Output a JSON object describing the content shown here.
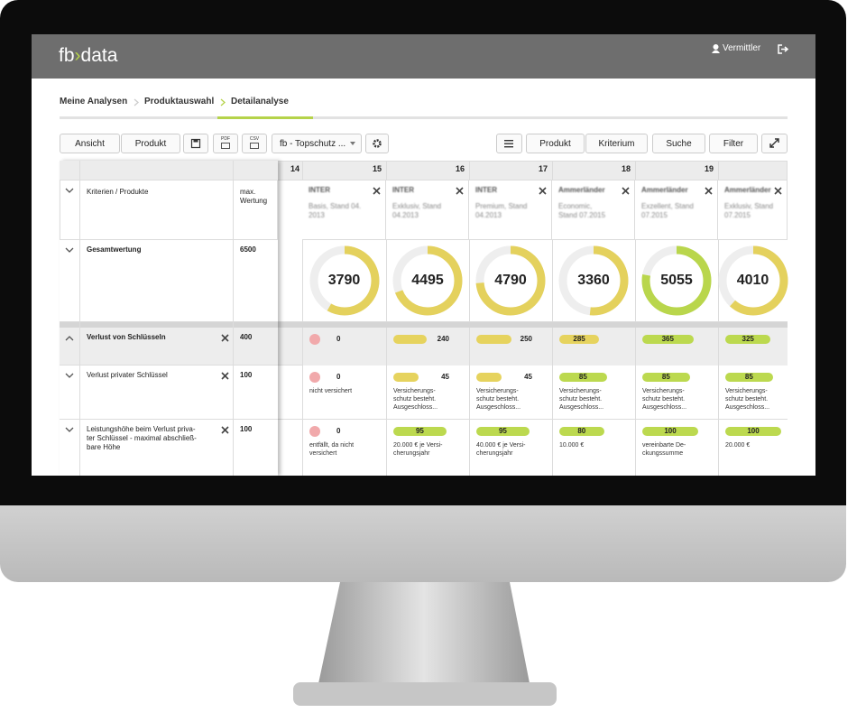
{
  "header": {
    "logo": {
      "left": "fb",
      "mark": "›",
      "right": "data"
    },
    "user": "Vermittler"
  },
  "breadcrumbs": [
    "Meine Analysen",
    "Produktauswahl",
    "Detailanalyse"
  ],
  "toolbar": {
    "left": [
      "Ansicht",
      "Produkt"
    ],
    "export": [
      "PDF",
      "CSV"
    ],
    "dropdown": "fb - Topschutz ...",
    "right": [
      "Produkt",
      "Kriterium",
      "Suche",
      "Filter"
    ]
  },
  "table": {
    "header_label": "Kriterien / Produkte",
    "max_label": "max. Wertung",
    "first_column": 14,
    "products": [
      {
        "column": 15,
        "name": "INTER",
        "tariff": "Basis, Stand 04.\n2013"
      },
      {
        "column": 16,
        "name": "INTER",
        "tariff": "Exklusiv, Stand\n04.2013"
      },
      {
        "column": 17,
        "name": "INTER",
        "tariff": "Premium, Stand\n04.2013"
      },
      {
        "column": 18,
        "name": "Ammerländer",
        "tariff": "Economic,\nStand 07.2015"
      },
      {
        "column": 19,
        "name": "Ammerländer",
        "tariff": "Exzellent, Stand\n07.2015"
      },
      {
        "column": null,
        "name": "Ammerländer",
        "tariff": "Exklusiv, Stand\n07.2015"
      }
    ],
    "rows": [
      {
        "label": "Gesamtwertung",
        "max": 6500,
        "type": "donut",
        "values": [
          3790,
          4495,
          4790,
          3360,
          5055,
          4010
        ]
      },
      {
        "label": "Verlust von Schlüsseln",
        "max": 400,
        "type": "bar",
        "group": true,
        "values": [
          0,
          240,
          250,
          285,
          365,
          325
        ]
      },
      {
        "label": "Verlust privater Schlüssel",
        "max": 100,
        "type": "bar",
        "values": [
          0,
          45,
          45,
          85,
          85,
          85
        ],
        "notes": [
          "nicht versichert",
          "Versicherungs-\nschutz besteht.\nAusgeschloss...",
          "Versicherungs-\nschutz besteht.\nAusgeschloss...",
          "Versicherungs-\nschutz besteht.\nAusgeschloss...",
          "Versicherungs-\nschutz besteht.\nAusgeschloss...",
          "Versicherungs-\nschutz besteht.\nAusgeschloss..."
        ]
      },
      {
        "label": "Leistungshöhe beim Verlust priva-\nter Schlüssel - maximal abschließ-\nbare Höhe",
        "max": 100,
        "type": "bar",
        "values": [
          0,
          95,
          95,
          80,
          100,
          100
        ],
        "notes": [
          "entfällt, da nicht\nversichert",
          "20.000 € je Versi-\ncherungsjahr",
          "40.000 € je Versi-\ncherungsjahr",
          "10.000 €",
          "vereinbarte De-\nckungssumme",
          "20.000 €"
        ]
      }
    ]
  }
}
